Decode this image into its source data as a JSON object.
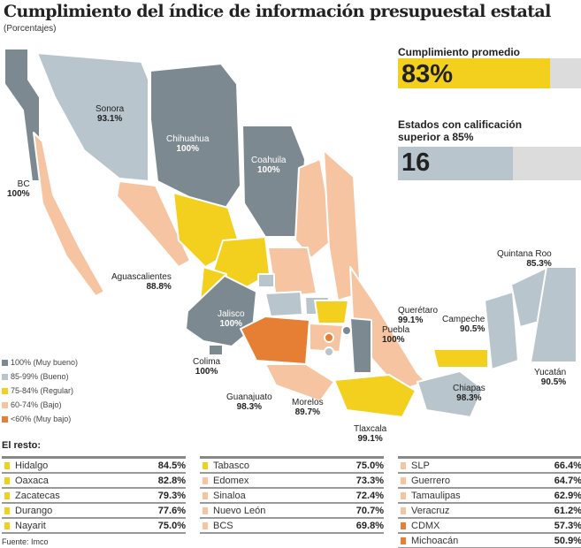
{
  "title": "Cumplimiento del índice de información presupuestal estatal",
  "subtitle": "(Porcentajes)",
  "colors": {
    "muy_bueno": "#7d8990",
    "bueno": "#b8c5cd",
    "regular": "#f4d01e",
    "bajo": "#f6c4a0",
    "muy_bajo": "#e67e33"
  },
  "kpis": {
    "average": {
      "label": "Cumplimiento promedio",
      "value": "83%",
      "fill_fraction": 0.83
    },
    "above85": {
      "label": "Estados con calificación superior a 85%",
      "value": "16",
      "fill_fraction": 0.63
    }
  },
  "map_labels": {
    "bc": {
      "name": "BC",
      "value": "100%"
    },
    "sonora": {
      "name": "Sonora",
      "value": "93.1%"
    },
    "chihuahua": {
      "name": "Chihuahua",
      "value": "100%"
    },
    "coahuila": {
      "name": "Coahuila",
      "value": "100%"
    },
    "aguascalientes": {
      "name": "Aguascalientes",
      "value": "88.8%"
    },
    "jalisco": {
      "name": "Jalisco",
      "value": "100%"
    },
    "colima": {
      "name": "Colima",
      "value": "100%"
    },
    "guanajuato": {
      "name": "Guanajuato",
      "value": "98.3%"
    },
    "morelos": {
      "name": "Morelos",
      "value": "89.7%"
    },
    "tlaxcala": {
      "name": "Tlaxcala",
      "value": "99.1%"
    },
    "queretaro": {
      "name": "Querétaro",
      "value": "99.1%"
    },
    "puebla": {
      "name": "Puebla",
      "value": "100%"
    },
    "campeche": {
      "name": "Campeche",
      "value": "90.5%"
    },
    "quintana_roo": {
      "name": "Quintana Roo",
      "value": "85.3%"
    },
    "yucatan": {
      "name": "Yucatán",
      "value": "90.5%"
    },
    "chiapas": {
      "name": "Chiapas",
      "value": "98.3%"
    }
  },
  "legend": [
    {
      "label": "100% (Muy bueno)",
      "color": "#7d8990"
    },
    {
      "label": "85-99% (Bueno)",
      "color": "#b8c5cd"
    },
    {
      "label": "75-84% (Regular)",
      "color": "#f4d01e"
    },
    {
      "label": "60-74% (Bajo)",
      "color": "#f6c4a0"
    },
    {
      "label": "<60% (Muy bajo)",
      "color": "#e67e33"
    }
  ],
  "resto_title": "El resto:",
  "resto": [
    [
      {
        "name": "Hidalgo",
        "value": "84.5%",
        "color": "#f4d01e"
      },
      {
        "name": "Oaxaca",
        "value": "82.8%",
        "color": "#f4d01e"
      },
      {
        "name": "Zacatecas",
        "value": "79.3%",
        "color": "#f4d01e"
      },
      {
        "name": "Durango",
        "value": "77.6%",
        "color": "#f4d01e"
      },
      {
        "name": "Nayarit",
        "value": "75.0%",
        "color": "#f4d01e"
      }
    ],
    [
      {
        "name": "Tabasco",
        "value": "75.0%",
        "color": "#f4d01e"
      },
      {
        "name": "Edomex",
        "value": "73.3%",
        "color": "#f6c4a0"
      },
      {
        "name": "Sinaloa",
        "value": "72.4%",
        "color": "#f6c4a0"
      },
      {
        "name": "Nuevo León",
        "value": "70.7%",
        "color": "#f6c4a0"
      },
      {
        "name": "BCS",
        "value": "69.8%",
        "color": "#f6c4a0"
      }
    ],
    [
      {
        "name": "SLP",
        "value": "66.4%",
        "color": "#f6c4a0"
      },
      {
        "name": "Guerrero",
        "value": "64.7%",
        "color": "#f6c4a0"
      },
      {
        "name": "Tamaulipas",
        "value": "62.9%",
        "color": "#f6c4a0"
      },
      {
        "name": "Veracruz",
        "value": "61.2%",
        "color": "#f6c4a0"
      },
      {
        "name": "CDMX",
        "value": "57.3%",
        "color": "#e67e33"
      },
      {
        "name": "Michoacán",
        "value": "50.9%",
        "color": "#e67e33"
      }
    ]
  ],
  "source": "Fuente: Imco"
}
